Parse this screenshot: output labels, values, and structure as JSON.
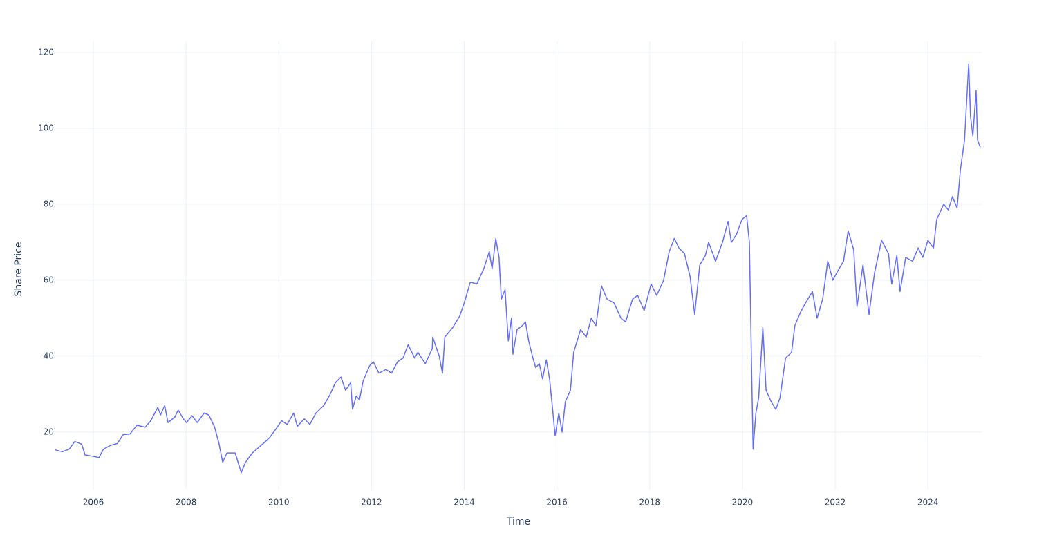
{
  "chart_data": {
    "type": "line",
    "x_label": "Time",
    "y_label": "Share Price",
    "x": [
      2005.18,
      2005.33,
      2005.48,
      2005.6,
      2005.75,
      2005.82,
      2006.0,
      2006.12,
      2006.22,
      2006.37,
      2006.52,
      2006.64,
      2006.79,
      2006.94,
      2007.12,
      2007.24,
      2007.39,
      2007.45,
      2007.54,
      2007.61,
      2007.76,
      2007.83,
      2007.94,
      2008.01,
      2008.13,
      2008.24,
      2008.39,
      2008.49,
      2008.61,
      2008.71,
      2008.79,
      2008.88,
      2009.06,
      2009.19,
      2009.28,
      2009.43,
      2009.62,
      2009.8,
      2009.95,
      2010.06,
      2010.18,
      2010.32,
      2010.4,
      2010.55,
      2010.67,
      2010.8,
      2010.97,
      2011.11,
      2011.22,
      2011.34,
      2011.44,
      2011.55,
      2011.59,
      2011.67,
      2011.74,
      2011.82,
      2011.96,
      2012.04,
      2012.16,
      2012.31,
      2012.43,
      2012.56,
      2012.68,
      2012.79,
      2012.93,
      2013.0,
      2013.16,
      2013.31,
      2013.32,
      2013.46,
      2013.53,
      2013.58,
      2013.75,
      2013.9,
      2014.0,
      2014.13,
      2014.27,
      2014.42,
      2014.54,
      2014.6,
      2014.68,
      2014.75,
      2014.8,
      2014.88,
      2014.95,
      2015.02,
      2015.05,
      2015.14,
      2015.25,
      2015.32,
      2015.39,
      2015.47,
      2015.54,
      2015.62,
      2015.69,
      2015.77,
      2015.84,
      2015.89,
      2015.96,
      2016.04,
      2016.11,
      2016.18,
      2016.29,
      2016.36,
      2016.51,
      2016.63,
      2016.74,
      2016.84,
      2016.96,
      2017.08,
      2017.23,
      2017.38,
      2017.48,
      2017.63,
      2017.74,
      2017.88,
      2018.03,
      2018.15,
      2018.3,
      2018.42,
      2018.53,
      2018.63,
      2018.75,
      2018.87,
      2018.97,
      2019.08,
      2019.2,
      2019.27,
      2019.42,
      2019.57,
      2019.69,
      2019.76,
      2019.87,
      2019.99,
      2020.09,
      2020.15,
      2020.2,
      2020.23,
      2020.29,
      2020.35,
      2020.44,
      2020.51,
      2020.62,
      2020.72,
      2020.81,
      2020.93,
      2021.06,
      2021.13,
      2021.25,
      2021.36,
      2021.51,
      2021.61,
      2021.73,
      2021.84,
      2021.95,
      2022.06,
      2022.18,
      2022.28,
      2022.4,
      2022.47,
      2022.6,
      2022.73,
      2022.85,
      2023.0,
      2023.15,
      2023.22,
      2023.33,
      2023.4,
      2023.52,
      2023.67,
      2023.79,
      2023.89,
      2024.0,
      2024.12,
      2024.19,
      2024.34,
      2024.44,
      2024.53,
      2024.63,
      2024.7,
      2024.79,
      2024.88,
      2024.92,
      2024.97,
      2025.04,
      2025.07,
      2025.13
    ],
    "series": [
      {
        "color": "#636efa",
        "values": [
          15.3,
          14.8,
          15.5,
          17.5,
          16.8,
          14,
          13.6,
          13.3,
          15.5,
          16.5,
          17,
          19.3,
          19.5,
          21.8,
          21.3,
          23,
          26.5,
          24.5,
          27,
          22.5,
          24,
          25.8,
          23.5,
          22.5,
          24.3,
          22.5,
          25,
          24.5,
          21.5,
          17,
          12,
          14.5,
          14.5,
          9.3,
          12,
          14.5,
          16.5,
          18.5,
          21,
          23,
          22,
          25,
          21.5,
          23.5,
          22,
          25,
          27,
          30,
          33,
          34.5,
          31,
          33,
          26,
          29.5,
          28.5,
          33.5,
          37.5,
          38.5,
          35.5,
          36.5,
          35.5,
          38.5,
          39.5,
          43,
          39.5,
          41,
          38,
          42,
          45,
          40,
          35.5,
          45,
          47.5,
          50.5,
          54,
          59.5,
          59,
          63,
          67.5,
          63,
          71,
          66,
          55,
          57.5,
          44,
          50,
          40.5,
          47,
          48,
          49,
          44,
          40,
          37,
          38,
          34,
          39,
          34,
          28,
          19,
          25,
          20,
          28,
          31,
          41,
          47,
          45,
          50,
          48,
          58.5,
          55,
          54,
          50,
          49,
          55,
          56,
          52,
          59,
          56,
          60,
          67.5,
          71,
          68.5,
          67,
          61,
          51,
          64,
          66.5,
          70,
          65,
          70,
          75.5,
          70,
          72,
          76,
          77,
          70,
          35,
          15.5,
          25,
          29,
          47.5,
          31,
          28,
          26,
          29,
          39.5,
          41,
          48,
          51.5,
          54,
          57,
          50,
          55,
          65,
          60,
          62.5,
          65,
          73,
          68,
          53,
          64,
          51,
          62,
          70.5,
          67,
          59,
          66.5,
          57,
          66,
          65,
          68.5,
          66,
          70.5,
          68.5,
          76,
          80,
          78.5,
          82,
          79,
          89,
          97,
          117,
          103,
          98,
          110,
          97,
          95
        ]
      }
    ],
    "xlim": [
      2005.18,
      2025.16
    ],
    "ylim": [
      4.7,
      122.9
    ],
    "xticks": [
      2006,
      2008,
      2010,
      2012,
      2014,
      2016,
      2018,
      2020,
      2022,
      2024
    ],
    "yticks": [
      20,
      40,
      60,
      80,
      100,
      120
    ],
    "grid": true
  }
}
